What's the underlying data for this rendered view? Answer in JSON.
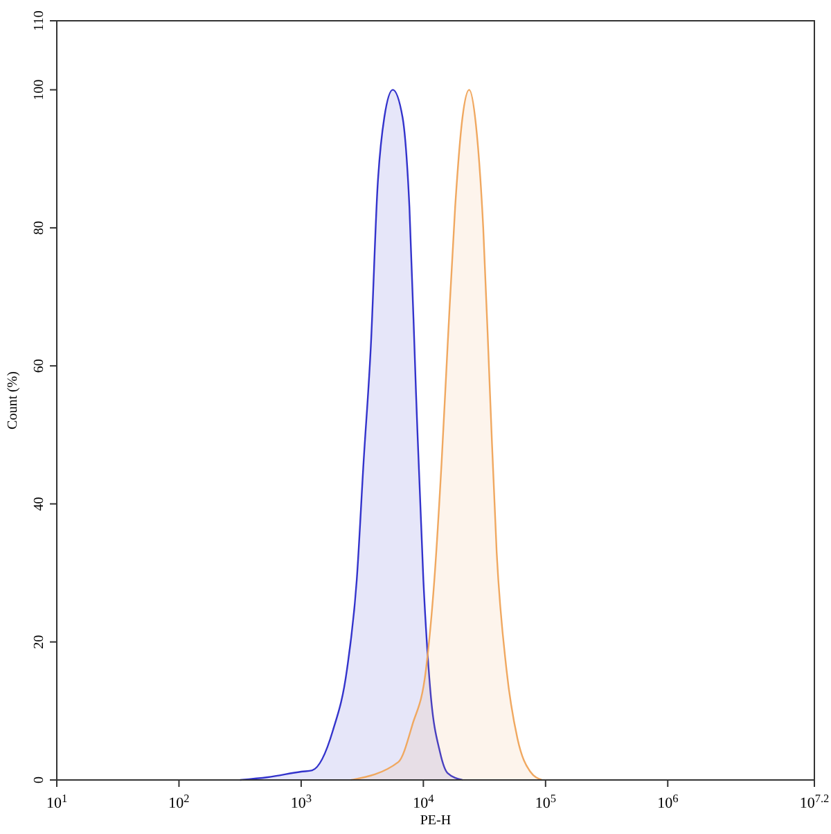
{
  "chart_data": {
    "type": "area",
    "xlabel": "PE-H",
    "ylabel": "Count (%)",
    "log": "x",
    "xlim": [
      10,
      15849000
    ],
    "xticks": [
      {
        "value": 10,
        "label": "10$^{1}$"
      },
      {
        "value": 100,
        "label": "10$^{2}$"
      },
      {
        "value": 1000,
        "label": "10$^{3}$"
      },
      {
        "value": 10000,
        "label": "10$^{4}$"
      },
      {
        "value": 100000,
        "label": "10$^{5}$"
      },
      {
        "value": 1000000,
        "label": "10$^{6}$"
      },
      {
        "value": 15849000,
        "label": "10$^{7.2}$"
      }
    ],
    "ylim": [
      0,
      110
    ],
    "yticks": [
      0,
      20,
      40,
      60,
      80,
      100,
      110
    ],
    "grid": false,
    "series": [
      {
        "color": "#3333cc",
        "x": [
          316,
          533,
          1000,
          1230,
          1820,
          2370,
          2850,
          3240,
          3720,
          4220,
          4790,
          5620,
          6760,
          7690,
          8710,
          10000,
          11400,
          13700,
          15800,
          20900
        ],
        "values": [
          0,
          0.4,
          1.2,
          1.4,
          7.2,
          16,
          29,
          46,
          63,
          86,
          96,
          100,
          96,
          83,
          56,
          29,
          13,
          4,
          1,
          0
        ]
      },
      {
        "color": "#f0a860",
        "x": [
          2570,
          6240,
          8130,
          10500,
          12300,
          14100,
          15800,
          18200,
          20900,
          23700,
          26900,
          30900,
          35100,
          39800,
          47900,
          58900,
          75000,
          93300
        ],
        "values": [
          0,
          2.6,
          8,
          16,
          29,
          46,
          63,
          83,
          96,
          100,
          95,
          80,
          56,
          33,
          16,
          6,
          1.2,
          0
        ]
      }
    ]
  }
}
